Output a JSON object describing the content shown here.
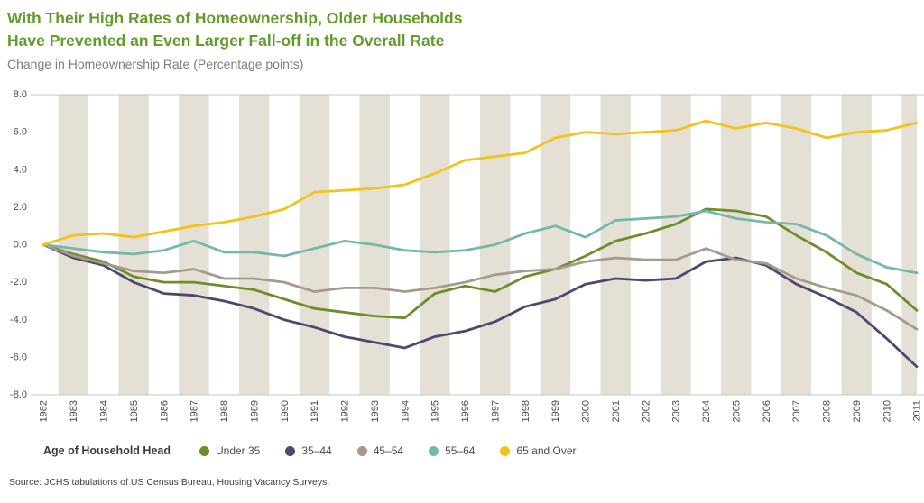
{
  "header": {
    "title_line1": "With Their High Rates of Homeownership, Older Households",
    "title_line2": "Have Prevented an Even Larger Fall-off in the Overall Rate",
    "subtitle": "Change in Homeownership Rate (Percentage points)"
  },
  "legend": {
    "title": "Age of Household Head"
  },
  "source": "Source: JCHS tabulations of US Census Bureau, Housing Vacancy Surveys.",
  "colors": {
    "title_green": "#649b2d",
    "stripe": "#e5e0d6",
    "axis_line": "#c9c4ba",
    "axis_text": "#4a4a4a"
  },
  "chart_data": {
    "type": "line",
    "title": "Change in Homeownership Rate (Percentage points)",
    "xlabel": "",
    "ylabel": "Change in Homeownership Rate (Percentage points)",
    "ylim": [
      -8,
      8
    ],
    "ytick_step": 2,
    "grid": false,
    "legend_position": "bottom",
    "background": "alternating vertical beige bands per year",
    "categories": [
      "1982",
      "1983",
      "1984",
      "1985",
      "1986",
      "1987",
      "1988",
      "1989",
      "1990",
      "1991",
      "1992",
      "1993",
      "1994",
      "1995",
      "1996",
      "1997",
      "1998",
      "1999",
      "2000",
      "2001",
      "2002",
      "2003",
      "2004",
      "2005",
      "2006",
      "2007",
      "2008",
      "2009",
      "2010",
      "2011"
    ],
    "series": [
      {
        "name": "Under 35",
        "color": "#6d8d2a",
        "values": [
          0.0,
          -0.5,
          -0.9,
          -1.7,
          -2.0,
          -2.0,
          -2.2,
          -2.4,
          -2.9,
          -3.4,
          -3.6,
          -3.8,
          -3.9,
          -2.6,
          -2.2,
          -2.5,
          -1.7,
          -1.3,
          -0.6,
          0.2,
          0.6,
          1.1,
          1.9,
          1.8,
          1.5,
          0.5,
          -0.4,
          -1.5,
          -2.1,
          -3.5
        ]
      },
      {
        "name": "35–44",
        "color": "#4f4770",
        "values": [
          0.0,
          -0.7,
          -1.1,
          -2.0,
          -2.6,
          -2.7,
          -3.0,
          -3.4,
          -4.0,
          -4.4,
          -4.9,
          -5.2,
          -5.5,
          -4.9,
          -4.6,
          -4.1,
          -3.3,
          -2.9,
          -2.1,
          -1.8,
          -1.9,
          -1.8,
          -0.9,
          -0.7,
          -1.1,
          -2.1,
          -2.8,
          -3.6,
          -5.0,
          -6.5
        ]
      },
      {
        "name": "45–54",
        "color": "#a59a8b",
        "values": [
          0.0,
          -0.6,
          -1.0,
          -1.4,
          -1.5,
          -1.3,
          -1.8,
          -1.8,
          -2.0,
          -2.5,
          -2.3,
          -2.3,
          -2.5,
          -2.3,
          -2.0,
          -1.6,
          -1.4,
          -1.3,
          -0.9,
          -0.7,
          -0.8,
          -0.8,
          -0.2,
          -0.8,
          -1.0,
          -1.8,
          -2.3,
          -2.7,
          -3.5,
          -4.5
        ]
      },
      {
        "name": "55–64",
        "color": "#76b7ab",
        "values": [
          0.0,
          -0.2,
          -0.4,
          -0.5,
          -0.3,
          0.2,
          -0.4,
          -0.4,
          -0.6,
          -0.2,
          0.2,
          0.0,
          -0.3,
          -0.4,
          -0.3,
          0.0,
          0.6,
          1.0,
          0.4,
          1.3,
          1.4,
          1.5,
          1.8,
          1.4,
          1.2,
          1.1,
          0.5,
          -0.5,
          -1.2,
          -1.5
        ]
      },
      {
        "name": "65 and Over",
        "color": "#f2c319",
        "values": [
          0.0,
          0.5,
          0.6,
          0.4,
          0.7,
          1.0,
          1.2,
          1.5,
          1.9,
          2.8,
          2.9,
          3.0,
          3.2,
          3.8,
          4.5,
          4.7,
          4.9,
          5.7,
          6.0,
          5.9,
          6.0,
          6.1,
          6.6,
          6.2,
          6.5,
          6.2,
          5.7,
          6.0,
          6.1,
          6.5
        ]
      }
    ]
  }
}
